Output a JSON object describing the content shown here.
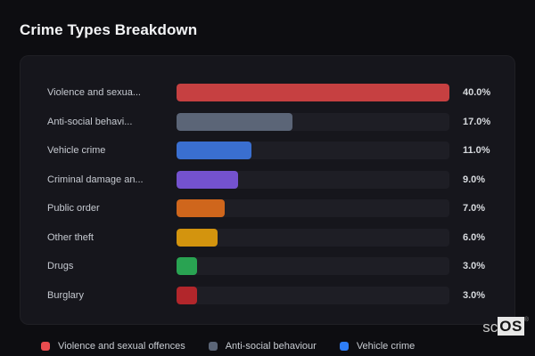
{
  "page": {
    "title": "Crime Types Breakdown",
    "theme": {
      "background": "#0d0d11",
      "card_background": "#16161c",
      "track_color": "#1e1e25",
      "title_color": "#f3f4f6",
      "label_color": "#c6cad1",
      "value_color": "#d7dade"
    }
  },
  "watermark": {
    "prefix": "sc",
    "suffix": "OS",
    "registered": "®"
  },
  "chart_data": {
    "type": "bar",
    "orientation": "horizontal",
    "title": "Crime Types Breakdown",
    "categories": [
      "Violence and sexua...",
      "Anti-social behavi...",
      "Vehicle crime",
      "Criminal damage an...",
      "Public order",
      "Other theft",
      "Drugs",
      "Burglary"
    ],
    "values": [
      40.0,
      17.0,
      11.0,
      9.0,
      7.0,
      6.0,
      3.0,
      3.0
    ],
    "value_labels": [
      "40.0%",
      "17.0%",
      "11.0%",
      "9.0%",
      "7.0%",
      "6.0%",
      "3.0%",
      "3.0%"
    ],
    "bar_colors": [
      "#c64041",
      "#5b6577",
      "#3a6fd0",
      "#7452ce",
      "#cf661c",
      "#d3940e",
      "#29a352",
      "#b2262b"
    ],
    "bar_scale_max": 40,
    "xlim": [
      0,
      40
    ],
    "grid": false,
    "legend_position": "bottom",
    "legend": [
      {
        "label": "Violence and sexual offences",
        "color": "#e84c4f"
      },
      {
        "label": "Anti-social behaviour",
        "color": "#5b6577"
      },
      {
        "label": "Vehicle crime",
        "color": "#2e7df6"
      }
    ]
  }
}
